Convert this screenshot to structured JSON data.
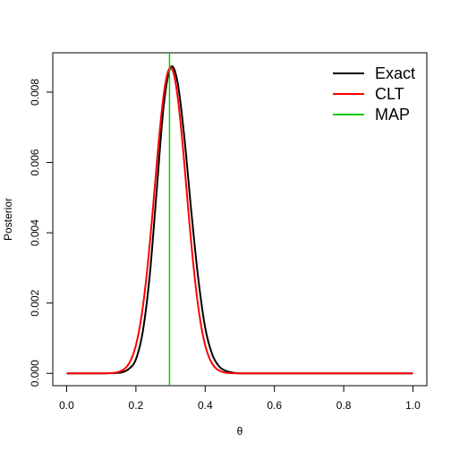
{
  "chart_data": {
    "type": "line",
    "title": "",
    "xlabel": "θ",
    "ylabel": "Posterior",
    "xlim": [
      -0.04,
      1.04
    ],
    "ylim": [
      -0.00035,
      0.00912
    ],
    "xticks": [
      0.0,
      0.2,
      0.4,
      0.6,
      0.8,
      1.0
    ],
    "xtick_labels": [
      "0.0",
      "0.2",
      "0.4",
      "0.6",
      "0.8",
      "1.0"
    ],
    "yticks": [
      0.0,
      0.002,
      0.004,
      0.006,
      0.008
    ],
    "ytick_labels": [
      "0.000",
      "0.002",
      "0.004",
      "0.006",
      "0.008"
    ],
    "grid": false,
    "legend_position": "top-right",
    "series": [
      {
        "name": "Exact",
        "color": "#000000",
        "x": [
          0.0,
          0.1,
          0.14,
          0.16,
          0.18,
          0.2,
          0.22,
          0.24,
          0.26,
          0.28,
          0.3,
          0.32,
          0.34,
          0.36,
          0.38,
          0.4,
          0.42,
          0.44,
          0.46,
          0.48,
          0.5,
          0.55,
          0.6,
          1.0
        ],
        "y": [
          0.0,
          0.0,
          1e-05,
          3e-05,
          0.00013,
          0.0004,
          0.0012,
          0.0028,
          0.0052,
          0.0076,
          0.0087,
          0.0083,
          0.0067,
          0.0046,
          0.0027,
          0.0013,
          0.00055,
          0.0002,
          7e-05,
          2e-05,
          0.0,
          0.0,
          0.0,
          0.0
        ]
      },
      {
        "name": "CLT",
        "color": "#ff0000",
        "mean": 0.3,
        "sd": 0.0458,
        "scale": 0.0087
      },
      {
        "name": "MAP",
        "color": "#00cd00",
        "vline_x": 0.297
      }
    ]
  }
}
